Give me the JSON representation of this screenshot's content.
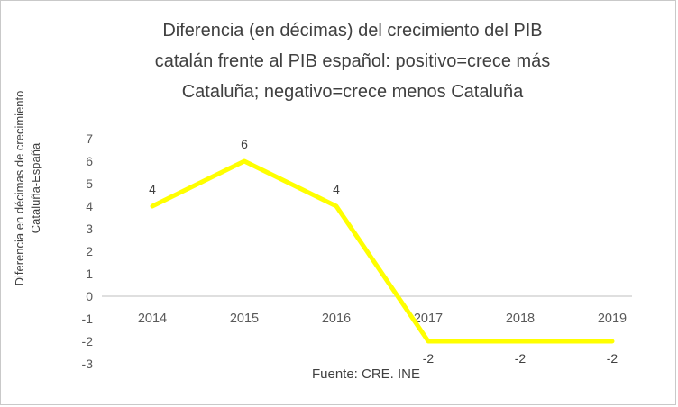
{
  "chart_data": {
    "type": "line",
    "title": "Diferencia (en décimas) del crecimiento del PIB\ncatalán frente al PIB español: positivo=crece más\nCataluña; negativo=crece menos Cataluña",
    "ylabel": "Diferencia en décimas de crecimiento\nCataluña-España",
    "xlabel": "",
    "categories": [
      "2014",
      "2015",
      "2016",
      "2017",
      "2018",
      "2019"
    ],
    "values": [
      4,
      6,
      4,
      -2,
      -2,
      -2
    ],
    "data_labels": [
      "4",
      "6",
      "4",
      "-2",
      "-2",
      "-2"
    ],
    "yticks": [
      7,
      6,
      5,
      4,
      3,
      2,
      1,
      0,
      -1,
      -2,
      -3
    ],
    "ylim": [
      -3,
      7
    ],
    "grid": false,
    "legend": false,
    "line_color": "#ffff00",
    "axis_color": "#bfbfbf",
    "text_color": "#404040",
    "tick_color": "#595959",
    "source": "Fuente: CRE. INE"
  }
}
